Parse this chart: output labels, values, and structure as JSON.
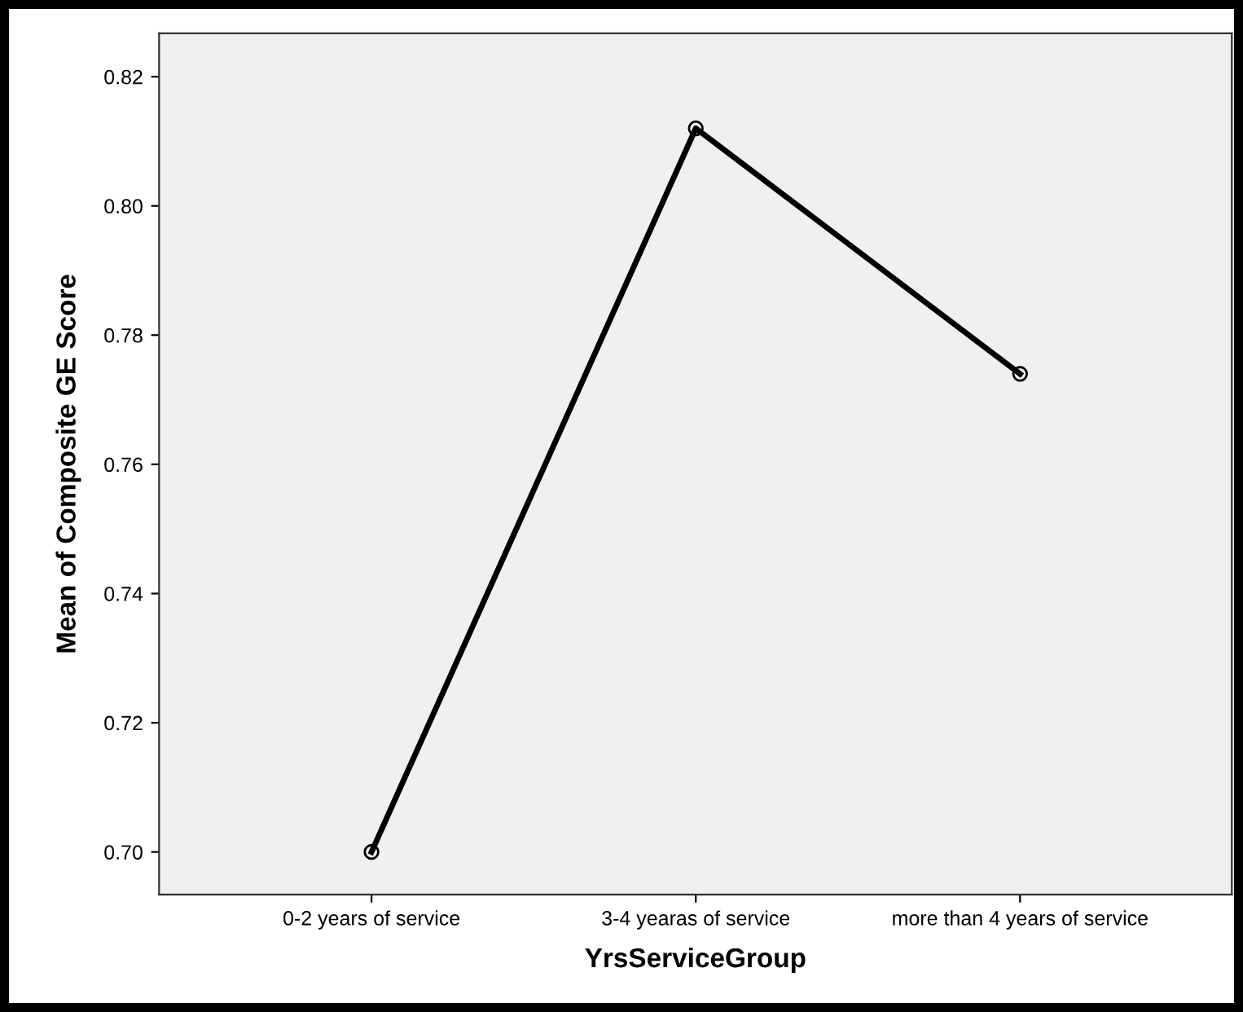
{
  "chart_data": {
    "type": "line",
    "xlabel": "YrsServiceGroup",
    "ylabel": "Mean of Composite GE Score",
    "categories": [
      "0-2 years of service",
      "3-4 yearas of service",
      "more than 4 years of service"
    ],
    "values": [
      0.7,
      0.812,
      0.774
    ],
    "color": "#000000",
    "marker": "circle",
    "line_style": "solid",
    "ylim": [
      0.6934,
      0.8267
    ],
    "yticks": [
      {
        "value": 0.7,
        "label": "0.70"
      },
      {
        "value": 0.72,
        "label": "0.72"
      },
      {
        "value": 0.74,
        "label": "0.74"
      },
      {
        "value": 0.76,
        "label": "0.76"
      },
      {
        "value": 0.78,
        "label": "0.78"
      },
      {
        "value": 0.8,
        "label": "0.80"
      },
      {
        "value": 0.82,
        "label": "0.82"
      }
    ],
    "grid": false,
    "legend": false
  }
}
